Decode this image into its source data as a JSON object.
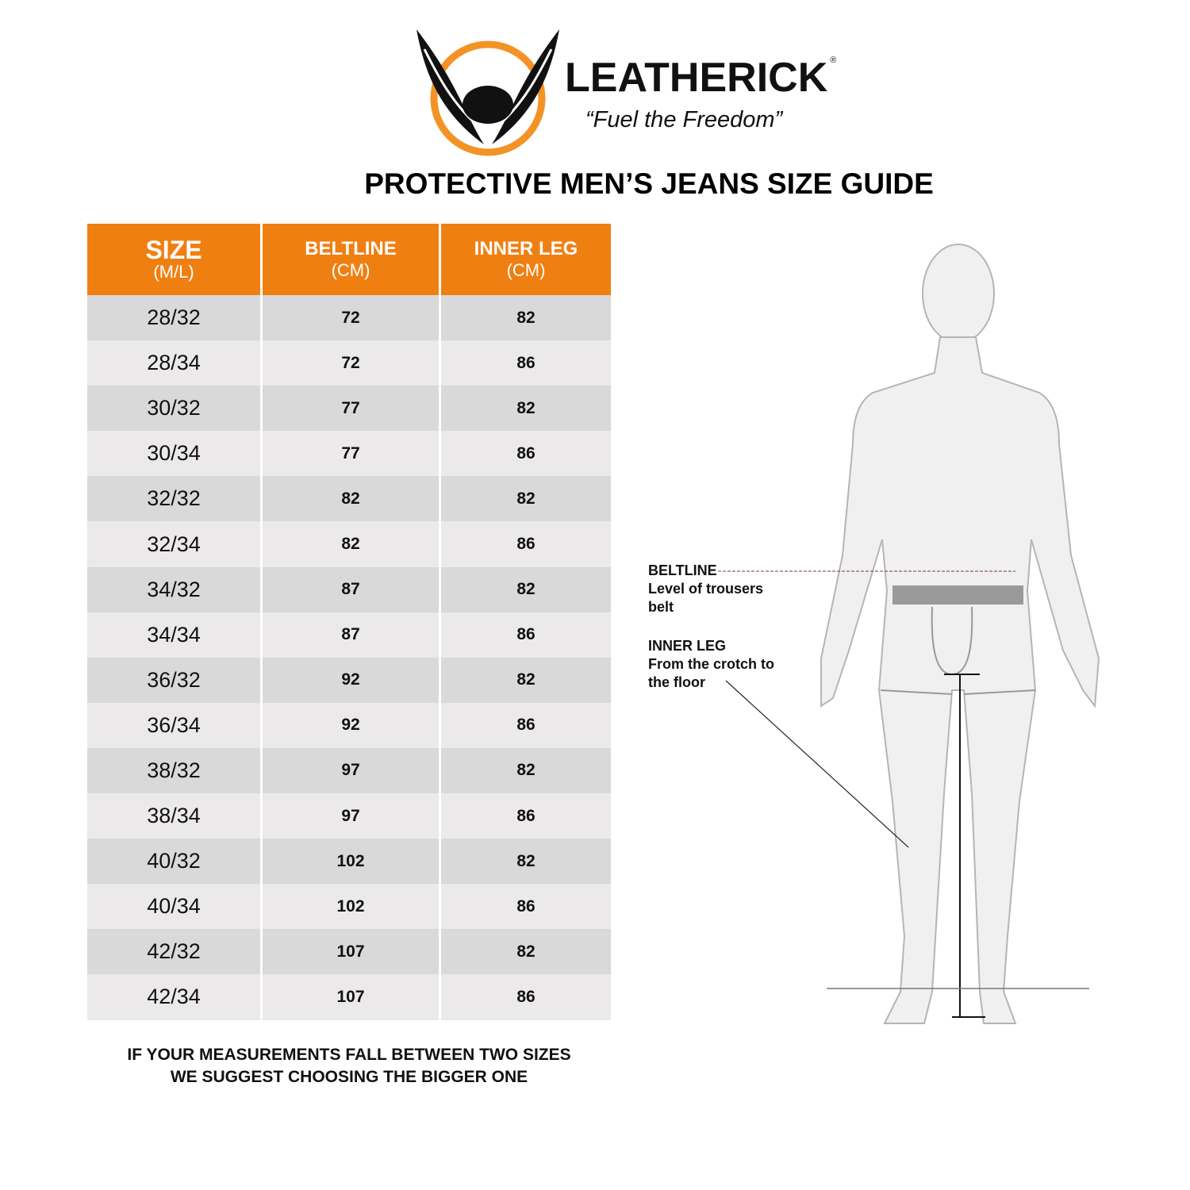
{
  "brand": {
    "name": "LEATHERICK",
    "registered": "®",
    "tagline": "“Fuel the Freedom”"
  },
  "title": "PROTECTIVE MEN’S JEANS SIZE GUIDE",
  "colors": {
    "accent": "#f07f12",
    "row_dark": "#d9d9d9",
    "row_light": "#ebe9ea"
  },
  "table": {
    "headers": [
      {
        "label": "SIZE",
        "unit": "(M/L)"
      },
      {
        "label": "BELTLINE",
        "unit": "(CM)"
      },
      {
        "label": "INNER LEG",
        "unit": "(CM)"
      }
    ],
    "rows": [
      [
        "28/32",
        "72",
        "82"
      ],
      [
        "28/34",
        "72",
        "86"
      ],
      [
        "30/32",
        "77",
        "82"
      ],
      [
        "30/34",
        "77",
        "86"
      ],
      [
        "32/32",
        "82",
        "82"
      ],
      [
        "32/34",
        "82",
        "86"
      ],
      [
        "34/32",
        "87",
        "82"
      ],
      [
        "34/34",
        "87",
        "86"
      ],
      [
        "36/32",
        "92",
        "82"
      ],
      [
        "36/34",
        "92",
        "86"
      ],
      [
        "38/32",
        "97",
        "82"
      ],
      [
        "38/34",
        "97",
        "86"
      ],
      [
        "40/32",
        "102",
        "82"
      ],
      [
        "40/34",
        "102",
        "86"
      ],
      [
        "42/32",
        "107",
        "82"
      ],
      [
        "42/34",
        "107",
        "86"
      ]
    ]
  },
  "note": [
    "IF YOUR MEASUREMENTS FALL BETWEEN TWO SIZES",
    "WE SUGGEST CHOOSING THE BIGGER ONE"
  ],
  "figure": {
    "beltline": {
      "title": "BELTLINE",
      "desc": [
        "Level of trousers",
        "belt"
      ]
    },
    "inner_leg": {
      "title": "INNER LEG",
      "desc": [
        "From the crotch to",
        "the floor"
      ]
    }
  }
}
